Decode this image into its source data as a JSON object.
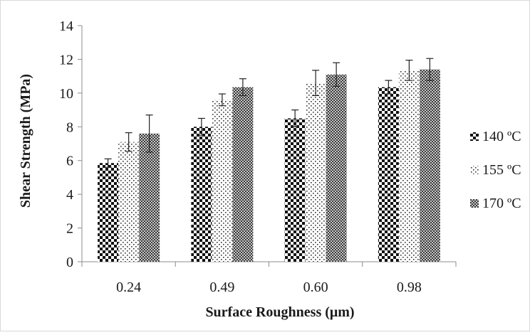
{
  "chart_data": {
    "type": "bar",
    "title": "",
    "xlabel": "Surface Roughness (μm)",
    "ylabel": "Shear Strength (MPa)",
    "categories": [
      "0.24",
      "0.49",
      "0.60",
      "0.98"
    ],
    "ylim": [
      0,
      14
    ],
    "yticks": [
      "0",
      "2",
      "4",
      "6",
      "8",
      "10",
      "12",
      "14"
    ],
    "grid": false,
    "legend_position": "right",
    "error_bars": true,
    "series": [
      {
        "name": "140 ºC",
        "pattern": "checker",
        "values": [
          5.85,
          8.0,
          8.5,
          10.35
        ],
        "errors": [
          0.25,
          0.5,
          0.5,
          0.4
        ]
      },
      {
        "name": "155 ºC",
        "pattern": "dots",
        "values": [
          7.1,
          9.6,
          10.6,
          11.35
        ],
        "errors": [
          0.55,
          0.35,
          0.75,
          0.6
        ]
      },
      {
        "name": "170 ºC",
        "pattern": "dense-checker",
        "values": [
          7.6,
          10.35,
          11.1,
          11.4
        ],
        "errors": [
          1.1,
          0.5,
          0.7,
          0.65
        ]
      }
    ]
  }
}
